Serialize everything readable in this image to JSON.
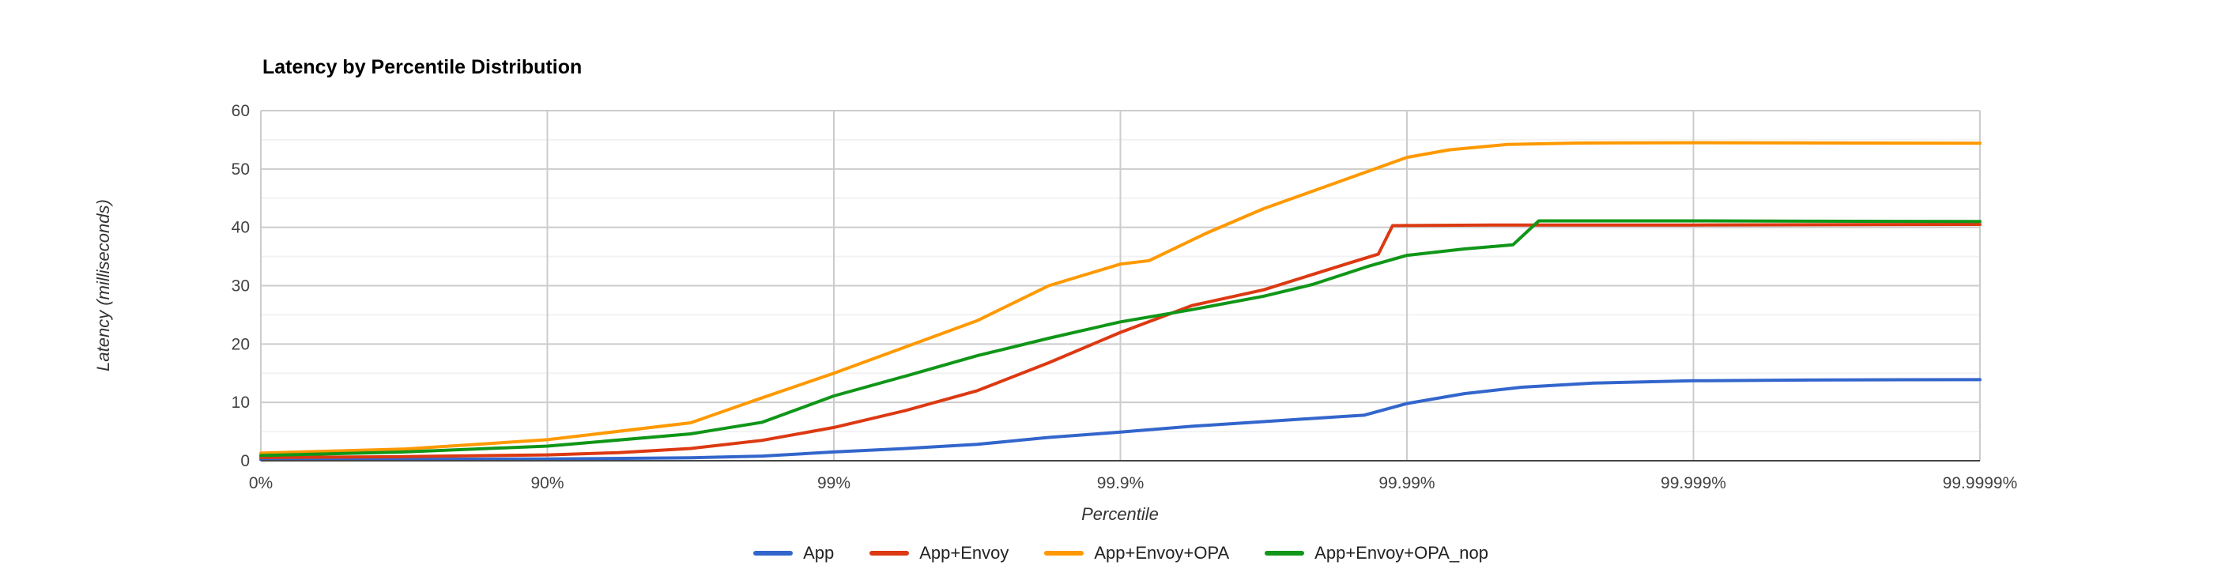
{
  "page": {
    "background": "#ffffff"
  },
  "chart_data": {
    "type": "line",
    "title": "Latency by Percentile Distribution",
    "xlabel": "Percentile",
    "ylabel": "Latency (milliseconds)",
    "x_scale": "log-percentile",
    "x_unit": "nines = -log10(1-p)",
    "xlim": [
      0,
      6
    ],
    "ylim": [
      0,
      60
    ],
    "x_ticks": [
      {
        "pos": 0,
        "label": "0%"
      },
      {
        "pos": 1,
        "label": "90%"
      },
      {
        "pos": 2,
        "label": "99%"
      },
      {
        "pos": 3,
        "label": "99.9%"
      },
      {
        "pos": 4,
        "label": "99.99%"
      },
      {
        "pos": 5,
        "label": "99.999%"
      },
      {
        "pos": 6,
        "label": "99.9999%"
      }
    ],
    "y_major_ticks": [
      0,
      10,
      20,
      30,
      40,
      50,
      60
    ],
    "y_minor_ticks": [
      5,
      15,
      25,
      35,
      45,
      55
    ],
    "grid": true,
    "legend_position": "bottom",
    "axis_colors": {
      "major_grid": "#cccccc",
      "minor_grid": "#f2f2f2",
      "baseline": "#444444",
      "tick_text": "#424242",
      "title_text": "#000000"
    },
    "series": [
      {
        "name": "App",
        "color": "#3366CC",
        "points": [
          [
            0,
            0.2
          ],
          [
            0.5,
            0.25
          ],
          [
            1,
            0.3
          ],
          [
            1.5,
            0.5
          ],
          [
            1.75,
            0.8
          ],
          [
            2,
            1.5
          ],
          [
            2.25,
            2.1
          ],
          [
            2.5,
            2.8
          ],
          [
            2.75,
            4.0
          ],
          [
            3,
            4.9
          ],
          [
            3.25,
            5.9
          ],
          [
            3.5,
            6.7
          ],
          [
            3.75,
            7.5
          ],
          [
            3.85,
            7.8
          ],
          [
            4,
            9.8
          ],
          [
            4.2,
            11.5
          ],
          [
            4.4,
            12.6
          ],
          [
            4.65,
            13.3
          ],
          [
            5,
            13.7
          ],
          [
            5.5,
            13.85
          ],
          [
            6,
            13.9
          ]
        ]
      },
      {
        "name": "App+Envoy",
        "color": "#DC3912",
        "points": [
          [
            0,
            0.55
          ],
          [
            0.5,
            0.7
          ],
          [
            1,
            1.0
          ],
          [
            1.25,
            1.4
          ],
          [
            1.5,
            2.1
          ],
          [
            1.75,
            3.5
          ],
          [
            2,
            5.7
          ],
          [
            2.25,
            8.6
          ],
          [
            2.5,
            12.0
          ],
          [
            2.75,
            16.8
          ],
          [
            3,
            22.0
          ],
          [
            3.25,
            26.6
          ],
          [
            3.5,
            29.3
          ],
          [
            3.65,
            31.6
          ],
          [
            3.8,
            33.9
          ],
          [
            3.9,
            35.4
          ],
          [
            3.95,
            40.3
          ],
          [
            4.3,
            40.4
          ],
          [
            5,
            40.4
          ],
          [
            6,
            40.5
          ]
        ]
      },
      {
        "name": "App+Envoy+OPA",
        "color": "#FF9900",
        "points": [
          [
            0,
            1.3
          ],
          [
            0.5,
            2.0
          ],
          [
            1,
            3.6
          ],
          [
            1.5,
            6.5
          ],
          [
            1.75,
            10.8
          ],
          [
            2,
            15.0
          ],
          [
            2.25,
            19.5
          ],
          [
            2.5,
            24.0
          ],
          [
            2.75,
            30.0
          ],
          [
            3,
            33.7
          ],
          [
            3.1,
            34.3
          ],
          [
            3.3,
            39.0
          ],
          [
            3.5,
            43.2
          ],
          [
            3.75,
            47.6
          ],
          [
            4,
            52.0
          ],
          [
            4.15,
            53.3
          ],
          [
            4.35,
            54.2
          ],
          [
            4.6,
            54.45
          ],
          [
            5,
            54.5
          ],
          [
            6,
            54.4
          ]
        ]
      },
      {
        "name": "App+Envoy+OPA_nop",
        "color": "#109618",
        "points": [
          [
            0,
            0.9
          ],
          [
            0.5,
            1.5
          ],
          [
            1,
            2.5
          ],
          [
            1.5,
            4.6
          ],
          [
            1.75,
            6.6
          ],
          [
            2,
            11.1
          ],
          [
            2.25,
            14.5
          ],
          [
            2.5,
            18.0
          ],
          [
            2.75,
            21.0
          ],
          [
            3,
            23.8
          ],
          [
            3.25,
            25.9
          ],
          [
            3.5,
            28.2
          ],
          [
            3.67,
            30.2
          ],
          [
            3.87,
            33.4
          ],
          [
            4,
            35.2
          ],
          [
            4.2,
            36.3
          ],
          [
            4.37,
            37.0
          ],
          [
            4.46,
            41.1
          ],
          [
            5,
            41.1
          ],
          [
            6,
            41.0
          ]
        ]
      }
    ]
  }
}
